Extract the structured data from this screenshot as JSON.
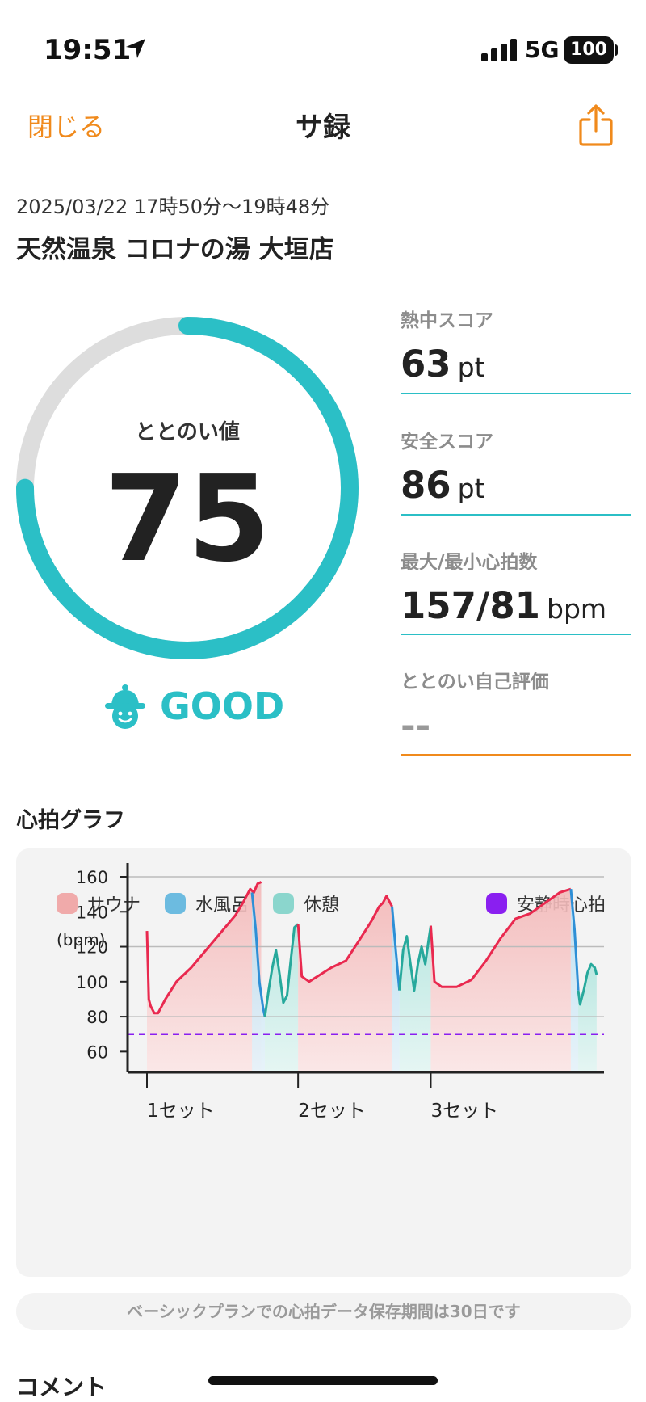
{
  "status_bar": {
    "time": "19:51",
    "network": "5G",
    "battery": "100"
  },
  "header": {
    "close_label": "閉じる",
    "title": "サ録"
  },
  "session": {
    "datetime": "2025/03/22 17時50分〜19時48分",
    "facility": "天然温泉 コロナの湯 大垣店"
  },
  "totonoi": {
    "label": "ととのい値",
    "value": 75,
    "max": 100,
    "grade": "GOOD"
  },
  "stats": {
    "heat_label": "熱中スコア",
    "heat_value": "63",
    "heat_unit": "pt",
    "safety_label": "安全スコア",
    "safety_value": "86",
    "safety_unit": "pt",
    "hr_label": "最大/最小心拍数",
    "hr_value": "157/81",
    "hr_unit": "bpm",
    "self_label": "ととのい自己評価",
    "self_value": "--"
  },
  "graph": {
    "heading": "心拍グラフ"
  },
  "colors": {
    "accent": "#2bbfc6",
    "orange": "#f08a1c",
    "sauna": "#e9294f",
    "water": "#2e8fd6",
    "rest": "#27a99c",
    "resting": "#8a1ff0"
  },
  "chart_data": {
    "type": "line",
    "ylabel": "(bpm)",
    "ylim": [
      50,
      160
    ],
    "yticks": [
      60,
      80,
      100,
      120,
      140,
      160
    ],
    "grid": true,
    "legend": "top",
    "legend_items": [
      {
        "name": "サウナ",
        "color": "#f0aaaa"
      },
      {
        "name": "水風呂",
        "color": "#6cbbe0"
      },
      {
        "name": "休憩",
        "color": "#8bd6cd"
      },
      {
        "name": "安静時心拍",
        "color": "#8a1ff0"
      }
    ],
    "resting_hr": 70,
    "x_markers": [
      {
        "label": "1セット",
        "t": 0
      },
      {
        "label": "2セット",
        "t": 41
      },
      {
        "label": "3セット",
        "t": 77
      }
    ],
    "series": [
      {
        "name": "サウナ",
        "phase": "sauna",
        "points": [
          [
            0,
            129
          ],
          [
            0.5,
            90
          ],
          [
            1,
            86
          ],
          [
            2,
            82
          ],
          [
            3,
            82
          ],
          [
            5,
            90
          ],
          [
            8,
            100
          ],
          [
            12,
            108
          ],
          [
            16,
            118
          ],
          [
            20,
            128
          ],
          [
            24,
            138
          ],
          [
            26,
            145
          ],
          [
            28,
            153
          ],
          [
            29,
            151
          ],
          [
            30,
            156
          ],
          [
            31,
            157
          ]
        ]
      },
      {
        "name": "水風呂",
        "phase": "water",
        "points": [
          [
            28.5,
            151
          ],
          [
            29.5,
            130
          ],
          [
            30.5,
            100
          ],
          [
            31.5,
            85
          ],
          [
            32,
            80
          ]
        ]
      },
      {
        "name": "休憩",
        "phase": "rest",
        "points": [
          [
            32,
            80
          ],
          [
            33,
            95
          ],
          [
            34,
            108
          ],
          [
            35,
            118
          ],
          [
            36,
            104
          ],
          [
            37,
            88
          ],
          [
            38,
            92
          ],
          [
            39,
            112
          ],
          [
            40,
            131
          ],
          [
            41,
            133
          ]
        ]
      },
      {
        "name": "サウナ",
        "phase": "sauna",
        "points": [
          [
            41,
            133
          ],
          [
            42,
            103
          ],
          [
            44,
            100
          ],
          [
            47,
            104
          ],
          [
            50,
            108
          ],
          [
            54,
            112
          ],
          [
            58,
            125
          ],
          [
            61,
            135
          ],
          [
            63,
            143
          ],
          [
            64,
            145
          ],
          [
            65,
            149
          ],
          [
            66.5,
            143
          ]
        ]
      },
      {
        "name": "水風呂",
        "phase": "water",
        "points": [
          [
            66.5,
            143
          ],
          [
            67.5,
            118
          ],
          [
            68.5,
            95
          ]
        ]
      },
      {
        "name": "休憩",
        "phase": "rest",
        "points": [
          [
            68.5,
            95
          ],
          [
            69.5,
            118
          ],
          [
            70.5,
            126
          ],
          [
            71.5,
            110
          ],
          [
            72.5,
            95
          ],
          [
            73.5,
            110
          ],
          [
            74.5,
            120
          ],
          [
            75.5,
            110
          ],
          [
            76.5,
            125
          ],
          [
            77,
            132
          ]
        ]
      },
      {
        "name": "サウナ",
        "phase": "sauna",
        "points": [
          [
            77,
            132
          ],
          [
            78,
            100
          ],
          [
            80,
            97
          ],
          [
            84,
            97
          ],
          [
            88,
            101
          ],
          [
            92,
            112
          ],
          [
            96,
            125
          ],
          [
            100,
            136
          ],
          [
            104,
            139
          ],
          [
            108,
            145
          ],
          [
            112,
            151
          ],
          [
            115,
            153
          ]
        ]
      },
      {
        "name": "水風呂",
        "phase": "water",
        "points": [
          [
            115,
            153
          ],
          [
            116,
            130
          ],
          [
            117,
            95
          ]
        ]
      },
      {
        "name": "休憩",
        "phase": "rest",
        "points": [
          [
            117,
            95
          ],
          [
            117.5,
            87
          ],
          [
            118.5,
            95
          ],
          [
            119.5,
            105
          ],
          [
            120.5,
            110
          ],
          [
            121.5,
            108
          ],
          [
            122,
            104
          ]
        ]
      }
    ]
  },
  "retention_note": "ベーシックプランでの心拍データ保存期間は30日です",
  "comment_heading": "コメント"
}
